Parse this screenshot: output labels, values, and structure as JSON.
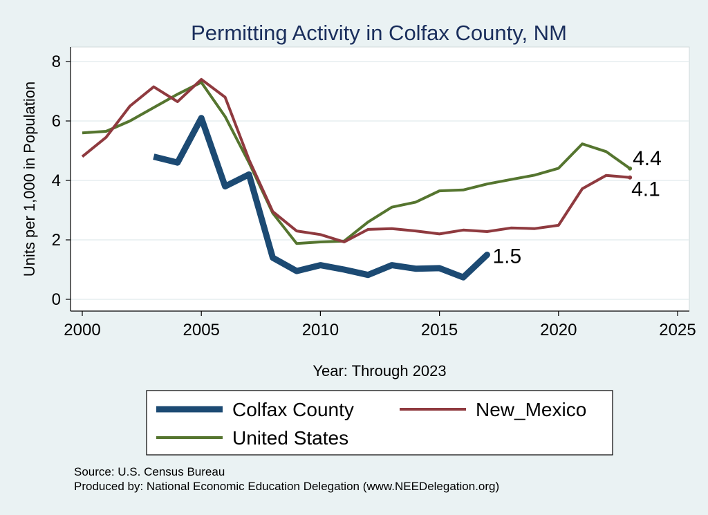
{
  "chart_data": {
    "type": "line",
    "title": "Permitting Activity in Colfax County, NM",
    "xlabel": "Year: Through 2023",
    "ylabel": "Units per 1,000 in Population",
    "xlim": [
      2000,
      2025
    ],
    "ylim": [
      0,
      8
    ],
    "xticks": [
      "2000",
      "2005",
      "2010",
      "2015",
      "2020",
      "2025"
    ],
    "yticks": [
      "0",
      "2",
      "4",
      "6",
      "8"
    ],
    "grid": true,
    "legend_position": "bottom",
    "series": [
      {
        "name": "Colfax County",
        "color": "#1c4a73",
        "x": [
          2003,
          2004,
          2005,
          2006,
          2007,
          2008,
          2009,
          2010,
          2011,
          2012,
          2013,
          2014,
          2015,
          2016,
          2017
        ],
        "y": [
          4.8,
          4.6,
          6.1,
          3.8,
          4.2,
          1.4,
          0.95,
          1.15,
          1.0,
          0.82,
          1.15,
          1.03,
          1.05,
          0.74,
          1.5
        ],
        "end_label": "1.5"
      },
      {
        "name": "New_Mexico",
        "color": "#8f3a3f",
        "x": [
          2000,
          2001,
          2002,
          2003,
          2004,
          2005,
          2006,
          2007,
          2008,
          2009,
          2010,
          2011,
          2012,
          2013,
          2014,
          2015,
          2016,
          2017,
          2018,
          2019,
          2020,
          2021,
          2022,
          2023
        ],
        "y": [
          4.8,
          5.45,
          6.5,
          7.15,
          6.65,
          7.4,
          6.8,
          4.7,
          2.95,
          2.3,
          2.18,
          1.93,
          2.35,
          2.38,
          2.3,
          2.2,
          2.33,
          2.28,
          2.4,
          2.38,
          2.49,
          3.72,
          4.17,
          4.1
        ],
        "end_label": "4.1"
      },
      {
        "name": "United States",
        "color": "#55752f",
        "x": [
          2000,
          2001,
          2002,
          2003,
          2004,
          2005,
          2006,
          2007,
          2008,
          2009,
          2010,
          2011,
          2012,
          2013,
          2014,
          2015,
          2016,
          2017,
          2018,
          2019,
          2020,
          2021,
          2022,
          2023
        ],
        "y": [
          5.6,
          5.65,
          6.0,
          6.45,
          6.9,
          7.3,
          6.15,
          4.6,
          2.9,
          1.88,
          1.93,
          1.96,
          2.6,
          3.1,
          3.27,
          3.65,
          3.68,
          3.88,
          4.03,
          4.18,
          4.41,
          5.23,
          4.97,
          4.4
        ],
        "end_label": "4.4"
      }
    ]
  },
  "footer": {
    "source": "Source: U.S. Census Bureau",
    "produced_by": "Produced by: National Economic Education Delegation (www.NEEDelegation.org)"
  }
}
